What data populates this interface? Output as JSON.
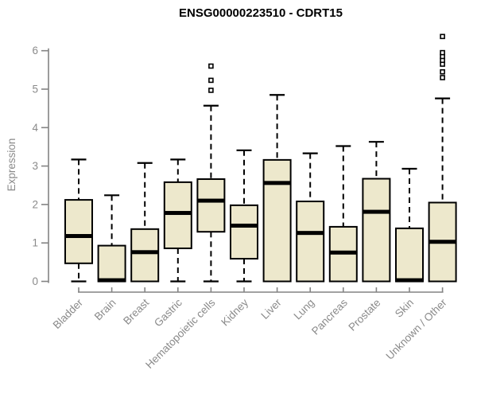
{
  "chart_data": {
    "type": "boxplot",
    "title": "ENSG00000223510 - CDRT15",
    "ylabel": "Expression",
    "xlabel": "",
    "ylim": [
      0,
      6.6
    ],
    "yticks": [
      0,
      1,
      2,
      3,
      4,
      5,
      6
    ],
    "grid": false,
    "legend": "none",
    "categories": [
      "Bladder",
      "Brain",
      "Breast",
      "Gastric",
      "Hematopoietic cells",
      "Kidney",
      "Liver",
      "Lung",
      "Pancreas",
      "Prostate",
      "Skin",
      "Unknown / Other"
    ],
    "series": [
      {
        "name": "Bladder",
        "whisker_low": 0,
        "q1": 0.47,
        "median": 1.18,
        "q3": 2.12,
        "whisker_high": 3.17,
        "outliers": []
      },
      {
        "name": "Brain",
        "whisker_low": 0,
        "q1": 0,
        "median": 0.03,
        "q3": 0.93,
        "whisker_high": 2.24,
        "outliers": []
      },
      {
        "name": "Breast",
        "whisker_low": 0,
        "q1": 0,
        "median": 0.76,
        "q3": 1.36,
        "whisker_high": 3.08,
        "outliers": []
      },
      {
        "name": "Gastric",
        "whisker_low": 0,
        "q1": 0.86,
        "median": 1.78,
        "q3": 2.58,
        "whisker_high": 3.17,
        "outliers": []
      },
      {
        "name": "Hematopoietic cells",
        "whisker_low": 0,
        "q1": 1.29,
        "median": 2.1,
        "q3": 2.66,
        "whisker_high": 4.57,
        "outliers": [
          4.97,
          5.23,
          5.6
        ]
      },
      {
        "name": "Kidney",
        "whisker_low": 0,
        "q1": 0.59,
        "median": 1.45,
        "q3": 1.98,
        "whisker_high": 3.41,
        "outliers": []
      },
      {
        "name": "Liver",
        "whisker_low": 0,
        "q1": 0,
        "median": 2.56,
        "q3": 3.16,
        "whisker_high": 4.85,
        "outliers": []
      },
      {
        "name": "Lung",
        "whisker_low": 0,
        "q1": 0,
        "median": 1.26,
        "q3": 2.08,
        "whisker_high": 3.33,
        "outliers": []
      },
      {
        "name": "Pancreas",
        "whisker_low": 0,
        "q1": 0,
        "median": 0.75,
        "q3": 1.42,
        "whisker_high": 3.52,
        "outliers": []
      },
      {
        "name": "Prostate",
        "whisker_low": 0,
        "q1": 0,
        "median": 1.81,
        "q3": 2.67,
        "whisker_high": 3.63,
        "outliers": []
      },
      {
        "name": "Skin",
        "whisker_low": 0,
        "q1": 0,
        "median": 0.03,
        "q3": 1.38,
        "whisker_high": 2.93,
        "outliers": []
      },
      {
        "name": "Unknown / Other",
        "whisker_low": 0,
        "q1": 0,
        "median": 1.03,
        "q3": 2.05,
        "whisker_high": 4.76,
        "outliers": [
          5.3,
          5.45,
          5.65,
          5.75,
          5.85,
          5.95,
          6.37
        ]
      }
    ],
    "colors": {
      "box_fill": "#EDE8CC",
      "box_stroke": "#000000",
      "median": "#000000",
      "whisker": "#000000",
      "axis": "#848484",
      "tick_label": "#8A8A8A",
      "title": "#000000",
      "background": "#FFFFFF"
    }
  }
}
